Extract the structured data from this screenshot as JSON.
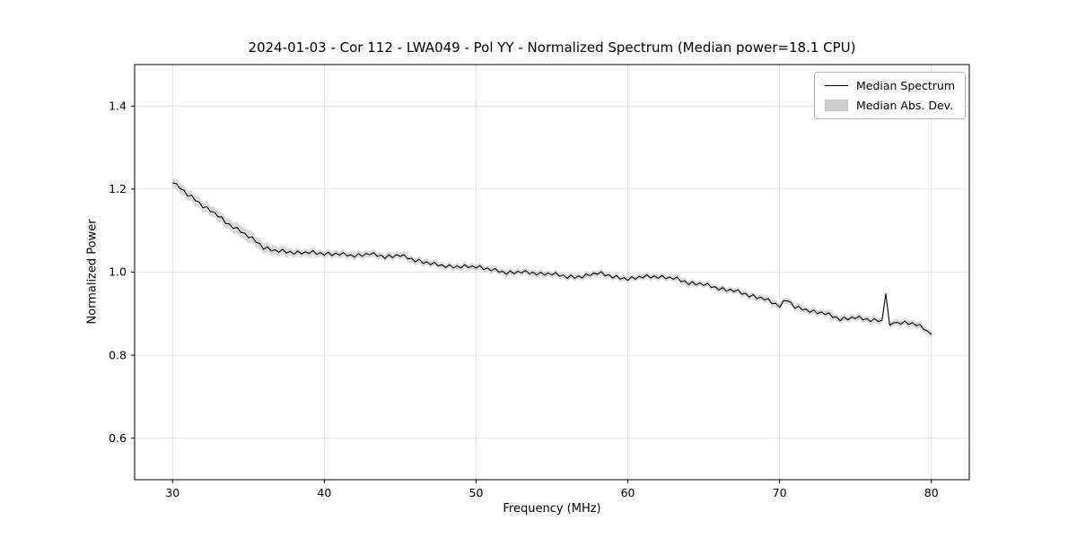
{
  "chart_data": {
    "type": "line",
    "title": "2024-01-03 - Cor 112 - LWA049 - Pol YY - Normalized Spectrum (Median power=18.1 CPU)",
    "xlabel": "Frequency (MHz)",
    "ylabel": "Normalized Power",
    "xlim": [
      27.5,
      82.5
    ],
    "ylim": [
      0.5,
      1.5
    ],
    "xticks": [
      30,
      40,
      50,
      60,
      70,
      80
    ],
    "yticks": [
      0.6,
      0.8,
      1.0,
      1.2,
      1.4
    ],
    "grid": true,
    "legend": {
      "position": "upper right",
      "entries": [
        {
          "label": "Median Spectrum",
          "type": "line",
          "color": "#000000"
        },
        {
          "label": "Median Abs. Dev.",
          "type": "patch",
          "color": "#cfcfcf"
        }
      ]
    },
    "colors": {
      "line": "#000000",
      "band": "#c6c6c6",
      "grid": "#dddddd",
      "frame": "#000000"
    },
    "series": [
      {
        "name": "Median Spectrum",
        "x_start": 30.0,
        "x_step": 0.25,
        "values": [
          1.215,
          1.213,
          1.201,
          1.197,
          1.183,
          1.185,
          1.172,
          1.169,
          1.155,
          1.158,
          1.146,
          1.145,
          1.133,
          1.133,
          1.117,
          1.116,
          1.105,
          1.108,
          1.096,
          1.094,
          1.083,
          1.085,
          1.072,
          1.069,
          1.055,
          1.061,
          1.051,
          1.054,
          1.048,
          1.055,
          1.046,
          1.05,
          1.043,
          1.051,
          1.044,
          1.049,
          1.045,
          1.052,
          1.043,
          1.047,
          1.041,
          1.048,
          1.04,
          1.046,
          1.041,
          1.047,
          1.039,
          1.042,
          1.036,
          1.045,
          1.038,
          1.045,
          1.042,
          1.047,
          1.038,
          1.041,
          1.033,
          1.042,
          1.035,
          1.042,
          1.038,
          1.042,
          1.032,
          1.033,
          1.025,
          1.031,
          1.021,
          1.025,
          1.018,
          1.024,
          1.015,
          1.018,
          1.011,
          1.018,
          1.01,
          1.015,
          1.01,
          1.018,
          1.011,
          1.015,
          1.01,
          1.016,
          1.006,
          1.01,
          1.003,
          1.009,
          1.0,
          1.002,
          0.995,
          1.003,
          0.996,
          1.002,
          0.998,
          1.004,
          0.996,
          1.0,
          0.993,
          1.0,
          0.993,
          0.998,
          0.993,
          0.999,
          0.99,
          0.993,
          0.985,
          0.993,
          0.985,
          0.991,
          0.986,
          0.996,
          0.991,
          0.998,
          0.995,
          1.001,
          0.991,
          0.994,
          0.986,
          0.992,
          0.983,
          0.987,
          0.98,
          0.989,
          0.983,
          0.99,
          0.986,
          0.994,
          0.986,
          0.991,
          0.985,
          0.992,
          0.984,
          0.988,
          0.983,
          0.988,
          0.977,
          0.979,
          0.97,
          0.977,
          0.969,
          0.974,
          0.968,
          0.973,
          0.963,
          0.965,
          0.957,
          0.963,
          0.954,
          0.959,
          0.953,
          0.958,
          0.947,
          0.949,
          0.94,
          0.946,
          0.936,
          0.94,
          0.933,
          0.936,
          0.924,
          0.925,
          0.915,
          0.931,
          0.931,
          0.927,
          0.913,
          0.918,
          0.909,
          0.911,
          0.903,
          0.909,
          0.9,
          0.904,
          0.898,
          0.902,
          0.891,
          0.892,
          0.883,
          0.892,
          0.885,
          0.892,
          0.888,
          0.894,
          0.885,
          0.888,
          0.881,
          0.888,
          0.881,
          0.884,
          0.948,
          0.872,
          0.878,
          0.879,
          0.875,
          0.882,
          0.874,
          0.878,
          0.871,
          0.874,
          0.862,
          0.858,
          0.85
        ]
      },
      {
        "name": "Median Abs. Dev.",
        "band_halfwidth_anchors": {
          "x": [
            30,
            33,
            35,
            38,
            45,
            60,
            80
          ],
          "hw": [
            0.012,
            0.013,
            0.014,
            0.009,
            0.008,
            0.007,
            0.008
          ]
        }
      }
    ]
  }
}
